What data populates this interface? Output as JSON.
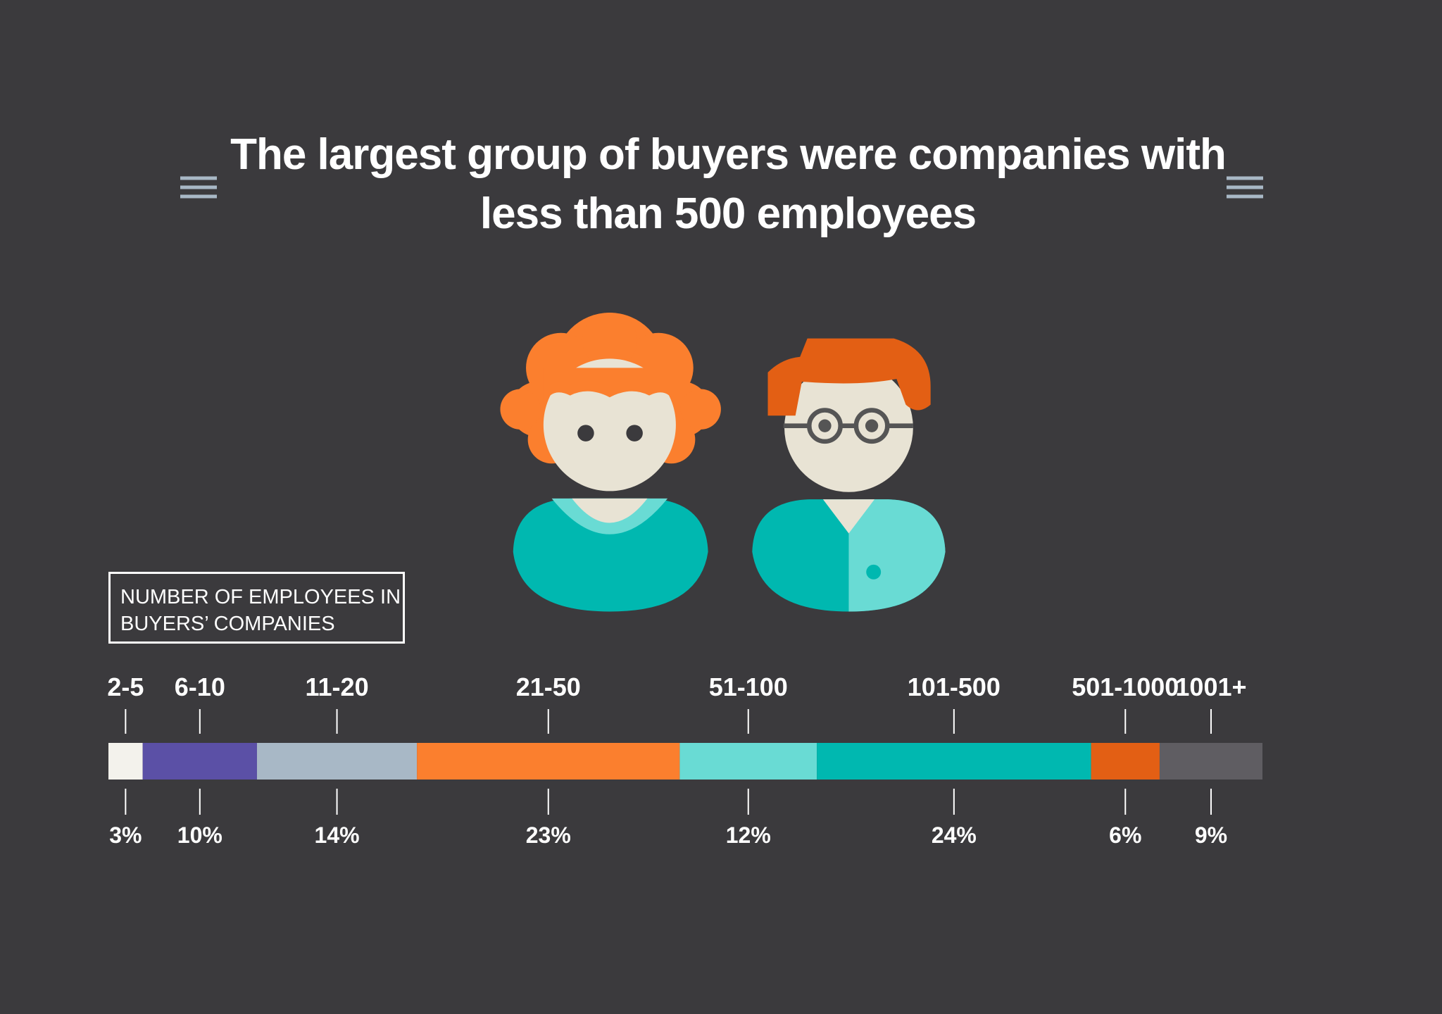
{
  "chart_data": {
    "type": "stacked-bar",
    "title": "The largest group of buyers were companies with less than 500 employees",
    "xlabel": "NUMBER OF EMPLOYEES IN BUYERS’ COMPANIES",
    "categories": [
      "2-5",
      "6-10",
      "11-20",
      "21-50",
      "51-100",
      "101-500",
      "501-1000",
      "1001+"
    ],
    "values": [
      3,
      10,
      14,
      23,
      12,
      24,
      6,
      9
    ],
    "value_labels": [
      "3%",
      "10%",
      "14%",
      "23%",
      "12%",
      "24%",
      "6%",
      "9%"
    ],
    "colors": [
      "#f3f2ec",
      "#5b50a6",
      "#a8b8c6",
      "#fb7f2e",
      "#69dbd4",
      "#00b8b0",
      "#e35f14",
      "#5f5d62"
    ]
  }
}
